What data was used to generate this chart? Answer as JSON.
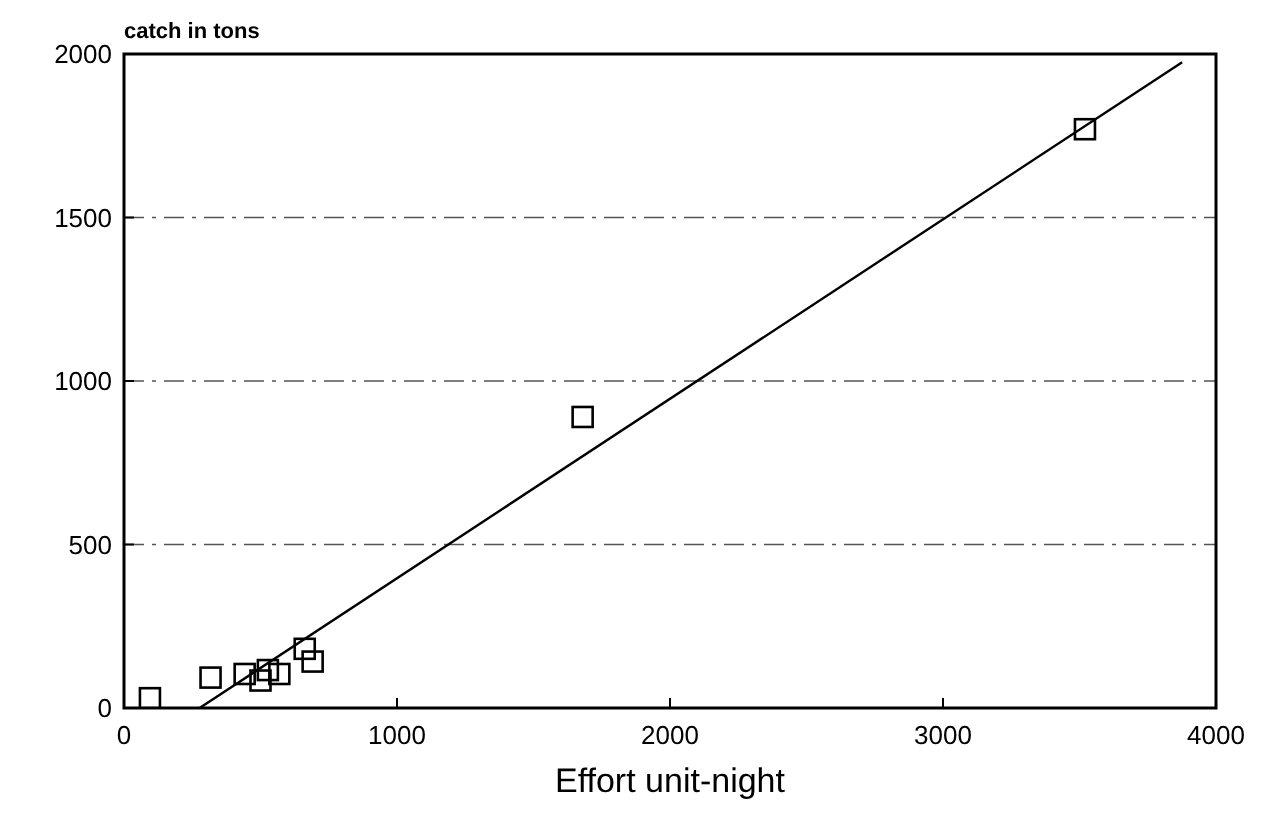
{
  "chart_data": {
    "type": "scatter",
    "ylabel": "catch in tons",
    "xlabel": "Effort unit-night",
    "xlim": [
      0,
      4000
    ],
    "xticks": [
      0,
      1000,
      2000,
      3000,
      4000
    ],
    "ylim": [
      0,
      2000
    ],
    "yticks": [
      0,
      500,
      1000,
      1500,
      2000
    ],
    "grid": "y",
    "series": [
      {
        "marker": "square",
        "color": "#000000",
        "x": [
          95,
          317,
          442,
          500,
          527,
          569,
          662,
          691,
          1680,
          3520
        ],
        "values": [
          30,
          93,
          104,
          84,
          116,
          104,
          181,
          142,
          890,
          1770
        ]
      },
      {
        "type": "line",
        "color": "#000000",
        "line_style": "solid",
        "x": [
          277,
          3876
        ],
        "values": [
          0,
          1975
        ]
      }
    ]
  }
}
